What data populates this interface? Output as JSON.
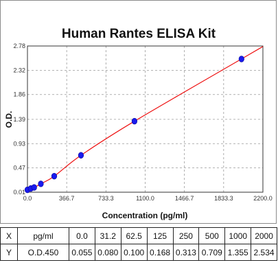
{
  "chart_data": {
    "type": "scatter",
    "title": "Human Rantes ELISA Kit",
    "xlabel": "Concentration (pg/ml)",
    "ylabel": "O.D.",
    "xlim": [
      0,
      2200
    ],
    "ylim": [
      0.01,
      2.78
    ],
    "x_ticks": [
      "0.0",
      "366.7",
      "733.3",
      "1100.0",
      "1466.7",
      "1833.3",
      "2200.0"
    ],
    "y_ticks": [
      "0.01",
      "0.47",
      "0.93",
      "1.39",
      "1.86",
      "2.32",
      "2.78"
    ],
    "grid": "dashed",
    "series": [
      {
        "x": [
          0,
          31.2,
          62.5,
          125,
          250,
          500,
          1000,
          2000
        ],
        "y": [
          0.055,
          0.08,
          0.1,
          0.168,
          0.313,
          0.709,
          1.355,
          2.534
        ],
        "marker_color": "#1a1aee",
        "fit_line_color": "#ee1111"
      }
    ],
    "table": {
      "x_row": [
        "X",
        "pg/ml",
        "0.0",
        "31.2",
        "62.5",
        "125",
        "250",
        "500",
        "1000",
        "2000"
      ],
      "y_row": [
        "Y",
        "O.D.450",
        "0.055",
        "0.080",
        "0.100",
        "0.168",
        "0.313",
        "0.709",
        "1.355",
        "2.534"
      ]
    }
  }
}
